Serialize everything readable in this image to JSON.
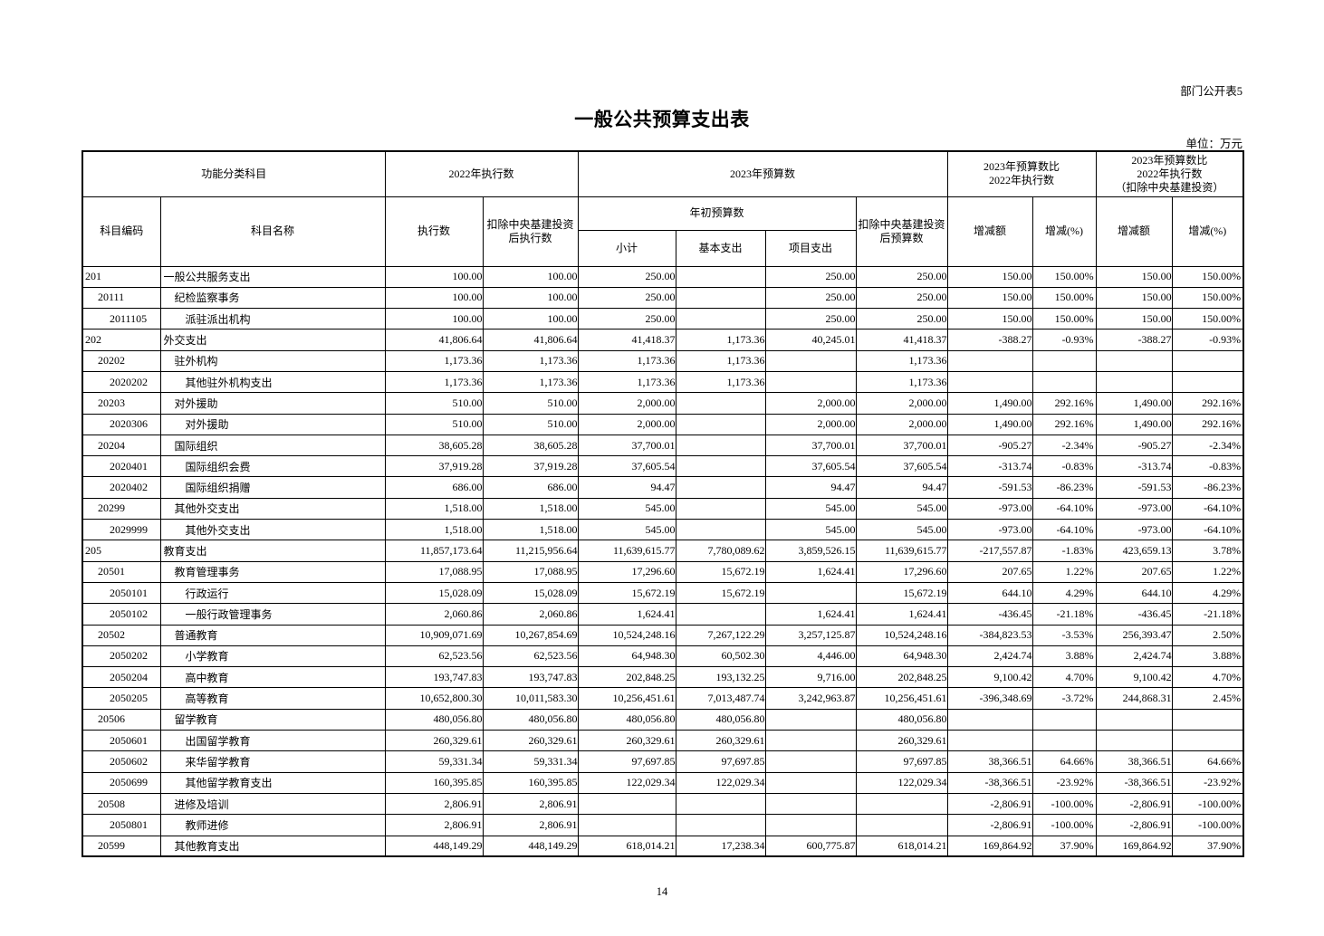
{
  "page": {
    "doc_label": "部门公开表5",
    "title": "一般公共预算支出表",
    "unit_label": "单位：万元",
    "page_number": "14"
  },
  "table": {
    "header": {
      "group_function": "功能分类科目",
      "group_exec_2022": "2022年执行数",
      "group_budget_2023": "2023年预算数",
      "group_cmp": "2023年预算数比\n2022年执行数",
      "group_cmp_net": "2023年预算数比\n2022年执行数\n（扣除中央基建投资）",
      "col_code": "科目编码",
      "col_name": "科目名称",
      "col_exec": "执行数",
      "col_exec_net": "扣除中央基建投资\n后执行数",
      "col_budget_initial": "年初预算数",
      "col_subtotal": "小计",
      "col_basic": "基本支出",
      "col_project": "项目支出",
      "col_budget_net": "扣除中央基建投资\n后预算数",
      "col_change_amt": "增减额",
      "col_change_pct": "增减(%)"
    },
    "rows": [
      {
        "code": "201",
        "level": 1,
        "name": "一般公共服务支出",
        "cells": [
          "100.00",
          "100.00",
          "250.00",
          "",
          "250.00",
          "250.00",
          "150.00",
          "150.00%",
          "150.00",
          "150.00%"
        ]
      },
      {
        "code": "20111",
        "level": 2,
        "name": "纪检监察事务",
        "cells": [
          "100.00",
          "100.00",
          "250.00",
          "",
          "250.00",
          "250.00",
          "150.00",
          "150.00%",
          "150.00",
          "150.00%"
        ]
      },
      {
        "code": "2011105",
        "level": 3,
        "name": "派驻派出机构",
        "cells": [
          "100.00",
          "100.00",
          "250.00",
          "",
          "250.00",
          "250.00",
          "150.00",
          "150.00%",
          "150.00",
          "150.00%"
        ]
      },
      {
        "code": "202",
        "level": 1,
        "name": "外交支出",
        "cells": [
          "41,806.64",
          "41,806.64",
          "41,418.37",
          "1,173.36",
          "40,245.01",
          "41,418.37",
          "-388.27",
          "-0.93%",
          "-388.27",
          "-0.93%"
        ]
      },
      {
        "code": "20202",
        "level": 2,
        "name": "驻外机构",
        "cells": [
          "1,173.36",
          "1,173.36",
          "1,173.36",
          "1,173.36",
          "",
          "1,173.36",
          "",
          "",
          "",
          ""
        ]
      },
      {
        "code": "2020202",
        "level": 3,
        "name": "其他驻外机构支出",
        "cells": [
          "1,173.36",
          "1,173.36",
          "1,173.36",
          "1,173.36",
          "",
          "1,173.36",
          "",
          "",
          "",
          ""
        ]
      },
      {
        "code": "20203",
        "level": 2,
        "name": "对外援助",
        "cells": [
          "510.00",
          "510.00",
          "2,000.00",
          "",
          "2,000.00",
          "2,000.00",
          "1,490.00",
          "292.16%",
          "1,490.00",
          "292.16%"
        ]
      },
      {
        "code": "2020306",
        "level": 3,
        "name": "对外援助",
        "cells": [
          "510.00",
          "510.00",
          "2,000.00",
          "",
          "2,000.00",
          "2,000.00",
          "1,490.00",
          "292.16%",
          "1,490.00",
          "292.16%"
        ]
      },
      {
        "code": "20204",
        "level": 2,
        "name": "国际组织",
        "cells": [
          "38,605.28",
          "38,605.28",
          "37,700.01",
          "",
          "37,700.01",
          "37,700.01",
          "-905.27",
          "-2.34%",
          "-905.27",
          "-2.34%"
        ]
      },
      {
        "code": "2020401",
        "level": 3,
        "name": "国际组织会费",
        "cells": [
          "37,919.28",
          "37,919.28",
          "37,605.54",
          "",
          "37,605.54",
          "37,605.54",
          "-313.74",
          "-0.83%",
          "-313.74",
          "-0.83%"
        ]
      },
      {
        "code": "2020402",
        "level": 3,
        "name": "国际组织捐赠",
        "cells": [
          "686.00",
          "686.00",
          "94.47",
          "",
          "94.47",
          "94.47",
          "-591.53",
          "-86.23%",
          "-591.53",
          "-86.23%"
        ]
      },
      {
        "code": "20299",
        "level": 2,
        "name": "其他外交支出",
        "cells": [
          "1,518.00",
          "1,518.00",
          "545.00",
          "",
          "545.00",
          "545.00",
          "-973.00",
          "-64.10%",
          "-973.00",
          "-64.10%"
        ]
      },
      {
        "code": "2029999",
        "level": 3,
        "name": "其他外交支出",
        "cells": [
          "1,518.00",
          "1,518.00",
          "545.00",
          "",
          "545.00",
          "545.00",
          "-973.00",
          "-64.10%",
          "-973.00",
          "-64.10%"
        ]
      },
      {
        "code": "205",
        "level": 1,
        "name": "教育支出",
        "cells": [
          "11,857,173.64",
          "11,215,956.64",
          "11,639,615.77",
          "7,780,089.62",
          "3,859,526.15",
          "11,639,615.77",
          "-217,557.87",
          "-1.83%",
          "423,659.13",
          "3.78%"
        ]
      },
      {
        "code": "20501",
        "level": 2,
        "name": "教育管理事务",
        "cells": [
          "17,088.95",
          "17,088.95",
          "17,296.60",
          "15,672.19",
          "1,624.41",
          "17,296.60",
          "207.65",
          "1.22%",
          "207.65",
          "1.22%"
        ]
      },
      {
        "code": "2050101",
        "level": 3,
        "name": "行政运行",
        "cells": [
          "15,028.09",
          "15,028.09",
          "15,672.19",
          "15,672.19",
          "",
          "15,672.19",
          "644.10",
          "4.29%",
          "644.10",
          "4.29%"
        ]
      },
      {
        "code": "2050102",
        "level": 3,
        "name": "一般行政管理事务",
        "cells": [
          "2,060.86",
          "2,060.86",
          "1,624.41",
          "",
          "1,624.41",
          "1,624.41",
          "-436.45",
          "-21.18%",
          "-436.45",
          "-21.18%"
        ]
      },
      {
        "code": "20502",
        "level": 2,
        "name": "普通教育",
        "cells": [
          "10,909,071.69",
          "10,267,854.69",
          "10,524,248.16",
          "7,267,122.29",
          "3,257,125.87",
          "10,524,248.16",
          "-384,823.53",
          "-3.53%",
          "256,393.47",
          "2.50%"
        ]
      },
      {
        "code": "2050202",
        "level": 3,
        "name": "小学教育",
        "cells": [
          "62,523.56",
          "62,523.56",
          "64,948.30",
          "60,502.30",
          "4,446.00",
          "64,948.30",
          "2,424.74",
          "3.88%",
          "2,424.74",
          "3.88%"
        ]
      },
      {
        "code": "2050204",
        "level": 3,
        "name": "高中教育",
        "cells": [
          "193,747.83",
          "193,747.83",
          "202,848.25",
          "193,132.25",
          "9,716.00",
          "202,848.25",
          "9,100.42",
          "4.70%",
          "9,100.42",
          "4.70%"
        ]
      },
      {
        "code": "2050205",
        "level": 3,
        "name": "高等教育",
        "cells": [
          "10,652,800.30",
          "10,011,583.30",
          "10,256,451.61",
          "7,013,487.74",
          "3,242,963.87",
          "10,256,451.61",
          "-396,348.69",
          "-3.72%",
          "244,868.31",
          "2.45%"
        ]
      },
      {
        "code": "20506",
        "level": 2,
        "name": "留学教育",
        "cells": [
          "480,056.80",
          "480,056.80",
          "480,056.80",
          "480,056.80",
          "",
          "480,056.80",
          "",
          "",
          "",
          ""
        ]
      },
      {
        "code": "2050601",
        "level": 3,
        "name": "出国留学教育",
        "cells": [
          "260,329.61",
          "260,329.61",
          "260,329.61",
          "260,329.61",
          "",
          "260,329.61",
          "",
          "",
          "",
          ""
        ]
      },
      {
        "code": "2050602",
        "level": 3,
        "name": "来华留学教育",
        "cells": [
          "59,331.34",
          "59,331.34",
          "97,697.85",
          "97,697.85",
          "",
          "97,697.85",
          "38,366.51",
          "64.66%",
          "38,366.51",
          "64.66%"
        ]
      },
      {
        "code": "2050699",
        "level": 3,
        "name": "其他留学教育支出",
        "cells": [
          "160,395.85",
          "160,395.85",
          "122,029.34",
          "122,029.34",
          "",
          "122,029.34",
          "-38,366.51",
          "-23.92%",
          "-38,366.51",
          "-23.92%"
        ]
      },
      {
        "code": "20508",
        "level": 2,
        "name": "进修及培训",
        "cells": [
          "2,806.91",
          "2,806.91",
          "",
          "",
          "",
          "",
          "-2,806.91",
          "-100.00%",
          "-2,806.91",
          "-100.00%"
        ]
      },
      {
        "code": "2050801",
        "level": 3,
        "name": "教师进修",
        "cells": [
          "2,806.91",
          "2,806.91",
          "",
          "",
          "",
          "",
          "-2,806.91",
          "-100.00%",
          "-2,806.91",
          "-100.00%"
        ]
      },
      {
        "code": "20599",
        "level": 2,
        "name": "其他教育支出",
        "cells": [
          "448,149.29",
          "448,149.29",
          "618,014.21",
          "17,238.34",
          "600,775.87",
          "618,014.21",
          "169,864.92",
          "37.90%",
          "169,864.92",
          "37.90%"
        ]
      }
    ]
  }
}
